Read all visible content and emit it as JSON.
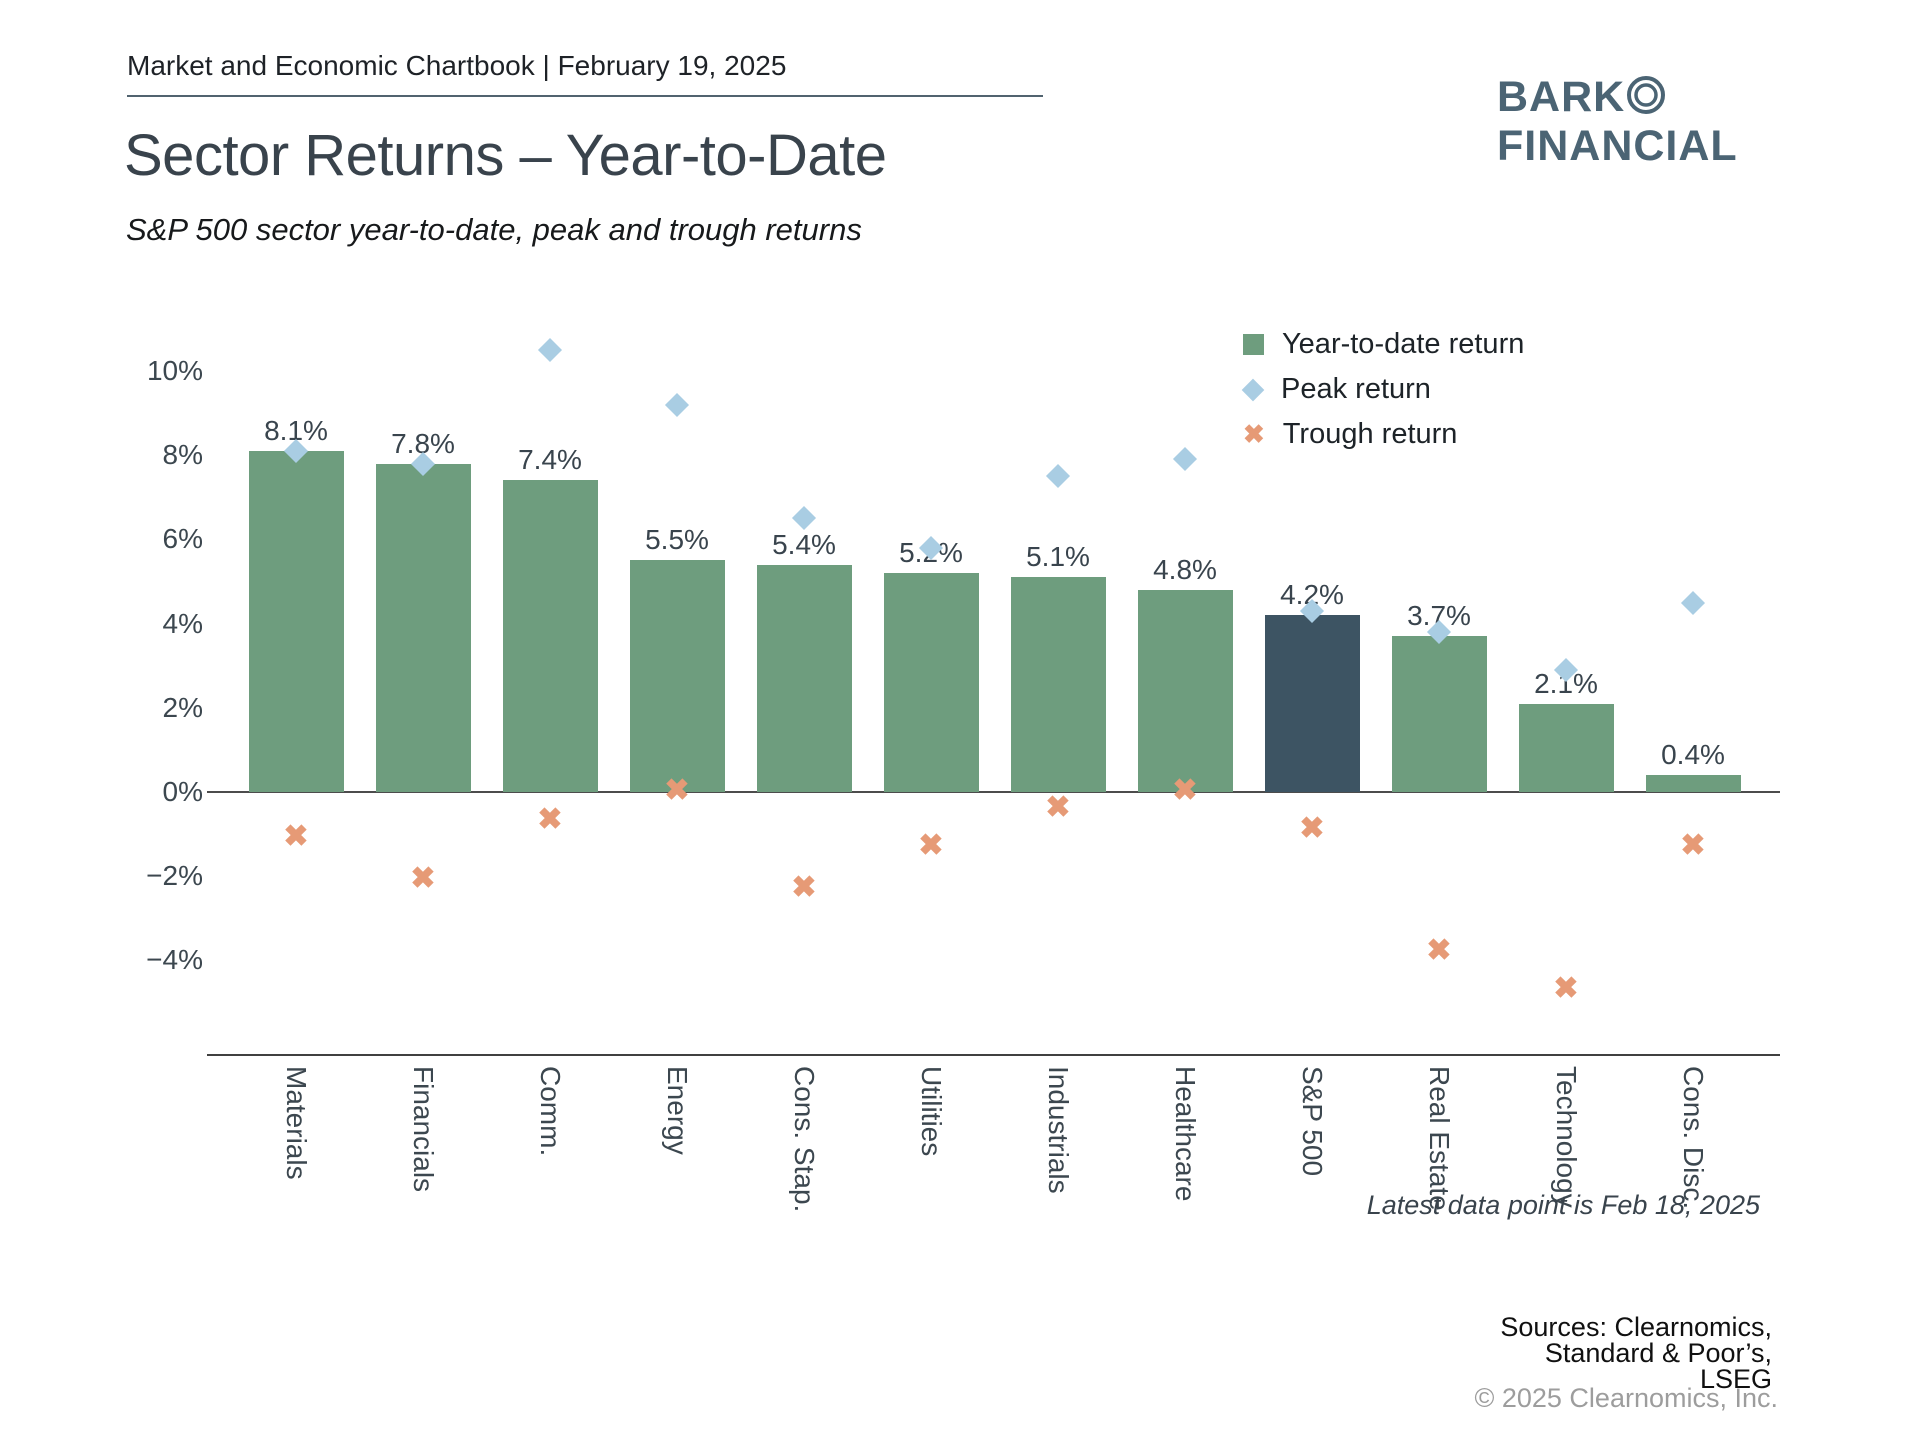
{
  "header": {
    "chartbook_line": "Market and Economic Chartbook | February 19, 2025"
  },
  "logo": {
    "word1": "BARK",
    "ring_icon": "double-circle",
    "word2": "FINANCIAL"
  },
  "title": "Sector Returns – Year-to-Date",
  "subtitle": "S&P 500 sector year-to-date, peak and trough returns",
  "legend": [
    {
      "label": "Year-to-date return",
      "marker": "green-square"
    },
    {
      "label": "Peak return",
      "marker": "blue-diamond"
    },
    {
      "label": "Trough return",
      "marker": "orange-x",
      "glyph": "✖"
    }
  ],
  "chart_data": {
    "type": "bar",
    "title": "Sector Returns – Year-to-Date",
    "categories": [
      "Materials",
      "Financials",
      "Comm.",
      "Energy",
      "Cons. Stap.",
      "Utilities",
      "Industrials",
      "Healthcare",
      "S&P 500",
      "Real Estate",
      "Technology",
      "Cons. Disc."
    ],
    "series": [
      {
        "name": "Year-to-date return",
        "type": "bar",
        "values": [
          8.1,
          7.8,
          7.4,
          5.5,
          5.4,
          5.2,
          5.1,
          4.8,
          4.2,
          3.7,
          2.1,
          0.4
        ]
      },
      {
        "name": "Peak return",
        "type": "scatter-diamond",
        "values": [
          8.1,
          7.8,
          10.5,
          9.2,
          6.5,
          5.8,
          7.5,
          7.9,
          4.3,
          3.8,
          2.9,
          4.5
        ]
      },
      {
        "name": "Trough return",
        "type": "scatter-x",
        "values": [
          -1.1,
          -2.1,
          -0.7,
          0.0,
          -2.3,
          -1.3,
          -0.4,
          0.0,
          -0.9,
          -3.8,
          -4.7,
          -1.3
        ]
      }
    ],
    "bar_value_labels": [
      "8.1%",
      "7.8%",
      "7.4%",
      "5.5%",
      "5.4%",
      "5.2%",
      "5.1%",
      "4.8%",
      "4.2%",
      "3.7%",
      "2.1%",
      "0.4%"
    ],
    "highlight_category": "S&P 500",
    "yticks": [
      {
        "value": 10,
        "label": "10%"
      },
      {
        "value": 8,
        "label": "8%"
      },
      {
        "value": 6,
        "label": "6%"
      },
      {
        "value": 4,
        "label": "4%"
      },
      {
        "value": 2,
        "label": "2%"
      },
      {
        "value": 0,
        "label": "0%"
      },
      {
        "value": -2,
        "label": "−2%"
      },
      {
        "value": -4,
        "label": "−4%"
      }
    ],
    "ylim": [
      -5.6,
      11.0
    ],
    "grid": false,
    "legend_position": "upper right",
    "colors": {
      "bar_green": "#6e9d7e",
      "bar_highlight_navy": "#3d5463",
      "peak_diamond_blue": "#a9cde3",
      "trough_x_orange": "#e69a76",
      "axis_text": "#3c474f",
      "baseline": "#4c4c4c"
    }
  },
  "footnote": "Latest data point is Feb 18, 2025",
  "sources": [
    "Sources: Clearnomics,",
    "Standard & Poor’s,",
    "LSEG"
  ],
  "copyright": "© 2025 Clearnomics, Inc."
}
